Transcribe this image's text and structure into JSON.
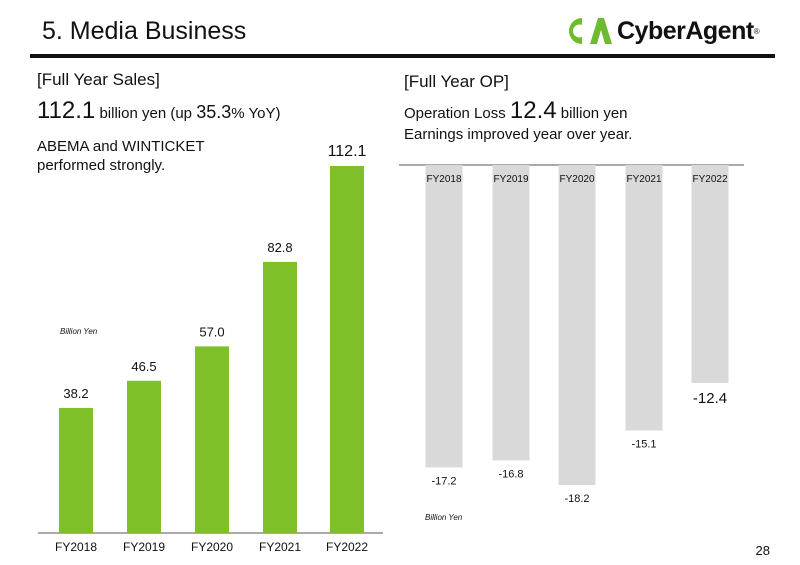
{
  "header": {
    "title": "5. Media Business",
    "logo_text": "CyberAgent",
    "logo_reg": "®"
  },
  "left": {
    "section_title": "[Full Year Sales]",
    "headline": {
      "value": "112.1",
      "text1": " billion yen (up ",
      "pct": "35.3",
      "text2": "% YoY)"
    },
    "note_line1": "ABEMA and WINTICKET",
    "note_line2": "performed strongly."
  },
  "right": {
    "section_title": "[Full Year OP]",
    "headline": {
      "text1": "Operation Loss ",
      "value": "12.4",
      "text2": " billion yen"
    },
    "note": "Earnings improved year over year."
  },
  "colors": {
    "sales_bar": "#7fbf2a",
    "op_bar": "#d9d9d9",
    "logo_green": "#6dbb2e",
    "axis": "#555555"
  },
  "chart_data": [
    {
      "type": "bar",
      "categories": [
        "FY2018",
        "FY2019",
        "FY2020",
        "FY2021",
        "FY2022"
      ],
      "values": [
        38.2,
        46.5,
        57.0,
        82.8,
        112.1
      ],
      "value_labels": [
        "38.2",
        "46.5",
        "57.0",
        "82.8",
        "112.1"
      ],
      "unit_label": "Billion Yen",
      "ylim": [
        0,
        125
      ]
    },
    {
      "type": "bar",
      "categories": [
        "FY2018",
        "FY2019",
        "FY2020",
        "FY2021",
        "FY2022"
      ],
      "values": [
        -17.2,
        -16.8,
        -18.2,
        -15.1,
        -12.4
      ],
      "value_labels": [
        "-17.2",
        "-16.8",
        "-18.2",
        "-15.1",
        "-12.4"
      ],
      "unit_label": "Billion Yen",
      "ylim": [
        -18.2,
        0
      ]
    }
  ],
  "page_number": "28"
}
